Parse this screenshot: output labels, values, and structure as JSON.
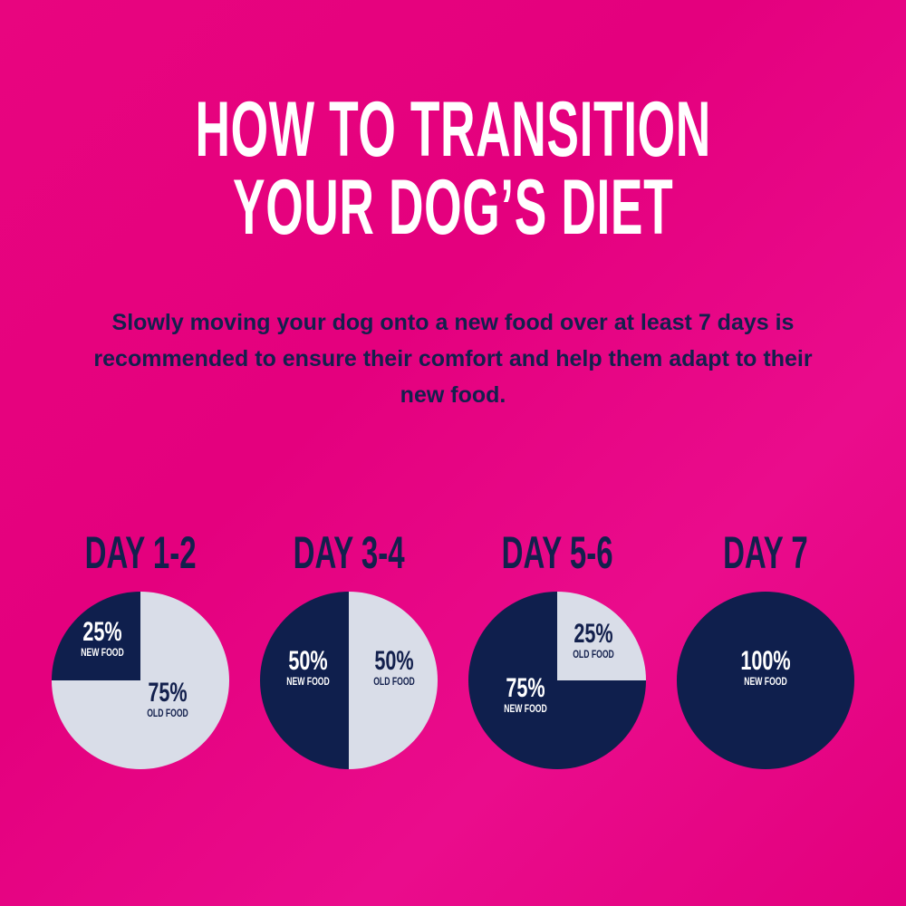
{
  "title": {
    "line1": "HOW TO TRANSITION",
    "line2": "YOUR DOG’S DIET"
  },
  "intro": "Slowly moving your dog onto a new food over at least 7 days is recommended to ensure their comfort and help them adapt to their new food.",
  "colors": {
    "background": "#e4007e",
    "new_food": "#0f1f4d",
    "old_food": "#d9dde8"
  },
  "chart_data": [
    {
      "type": "pie",
      "title": "DAY 1-2",
      "slices": [
        {
          "label": "NEW FOOD",
          "value": 25,
          "text": "25%"
        },
        {
          "label": "OLD FOOD",
          "value": 75,
          "text": "75%"
        }
      ]
    },
    {
      "type": "pie",
      "title": "DAY 3-4",
      "slices": [
        {
          "label": "NEW FOOD",
          "value": 50,
          "text": "50%"
        },
        {
          "label": "OLD FOOD",
          "value": 50,
          "text": "50%"
        }
      ]
    },
    {
      "type": "pie",
      "title": "DAY 5-6",
      "slices": [
        {
          "label": "NEW FOOD",
          "value": 75,
          "text": "75%"
        },
        {
          "label": "OLD FOOD",
          "value": 25,
          "text": "25%"
        }
      ]
    },
    {
      "type": "pie",
      "title": "DAY 7",
      "slices": [
        {
          "label": "NEW FOOD",
          "value": 100,
          "text": "100%"
        }
      ]
    }
  ]
}
